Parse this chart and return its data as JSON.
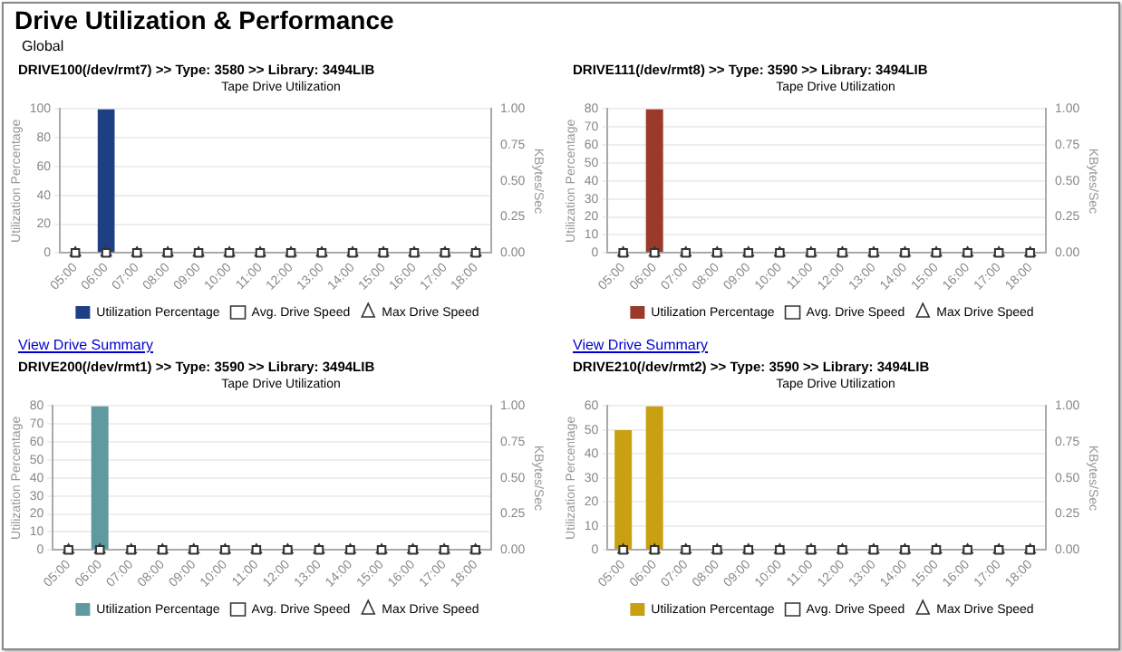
{
  "chart_data": [
    {
      "type": "bar",
      "title": "Tape Drive Utilization",
      "subtitle": "DRIVE100(/dev/rmt7) >> Type: 3580 >> Library: 3494LIB",
      "annotations": [
        "Drive Utilization & Performance",
        "Global",
        "View Drive Summary"
      ],
      "xlabel": null,
      "ylabel": "Utilization Percentage",
      "y2label": "KBytes/Sec",
      "categories": [
        "05:00",
        "06:00",
        "07:00",
        "08:00",
        "09:00",
        "10:00",
        "11:00",
        "12:00",
        "13:00",
        "14:00",
        "15:00",
        "16:00",
        "17:00",
        "18:00"
      ],
      "series": [
        {
          "name": "Utilization Percentage",
          "color": "#1f3f84",
          "values": [
            null,
            100,
            null,
            null,
            null,
            null,
            null,
            null,
            null,
            null,
            null,
            null,
            null,
            null
          ]
        },
        {
          "name": "Avg. Drive Speed",
          "type": "scatter",
          "x": [
            "05:00",
            "06:00",
            "07:00",
            "08:00",
            "09:00",
            "10:00",
            "11:00",
            "12:00",
            "13:00",
            "14:00",
            "15:00",
            "16:00",
            "17:00",
            "18:00"
          ],
          "marker": "square",
          "color": "#333333",
          "values": [
            0,
            0,
            0,
            0,
            0,
            0,
            0,
            0,
            0,
            0,
            0,
            0,
            0,
            0
          ]
        },
        {
          "name": "Max Drive Speed",
          "type": "scatter",
          "x": [
            "05:00",
            "06:00",
            "07:00",
            "08:00",
            "09:00",
            "10:00",
            "11:00",
            "12:00",
            "13:00",
            "14:00",
            "15:00",
            "16:00",
            "17:00",
            "18:00"
          ],
          "marker": "triangle",
          "color": "#333333",
          "values": [
            0,
            0,
            0,
            0,
            0,
            0,
            0,
            0,
            0,
            0,
            0,
            0,
            0,
            0
          ]
        }
      ],
      "ylim": [
        0,
        100
      ],
      "yticks": [
        0,
        20,
        40,
        60,
        80,
        100
      ],
      "y2lim": [
        0,
        1
      ],
      "y2ticks": [
        {
          "value": 0,
          "label": "0.00"
        },
        {
          "value": 0.25,
          "label": "0.25"
        },
        {
          "value": 0.5,
          "label": "0.50"
        },
        {
          "value": 0.75,
          "label": "0.75"
        },
        {
          "value": 1,
          "label": "1.00"
        }
      ],
      "grid": "y",
      "legend": "bottom"
    },
    {
      "type": "bar",
      "title": "Tape Drive Utilization",
      "subtitle": "DRIVE111(/dev/rmt8) >> Type: 3590 >> Library: 3494LIB",
      "annotations": [
        "View Drive Summary"
      ],
      "ylabel": "Utilization Percentage",
      "y2label": "KBytes/Sec",
      "categories": [
        "05:00",
        "06:00",
        "07:00",
        "08:00",
        "09:00",
        "10:00",
        "11:00",
        "12:00",
        "13:00",
        "14:00",
        "15:00",
        "16:00",
        "17:00",
        "18:00"
      ],
      "series": [
        {
          "name": "Utilization Percentage",
          "color": "#9a3a2a",
          "values": [
            null,
            80,
            null,
            null,
            null,
            null,
            null,
            null,
            null,
            null,
            null,
            null,
            null,
            null
          ]
        },
        {
          "name": "Avg. Drive Speed",
          "type": "scatter",
          "x": [
            "05:00",
            "06:00",
            "07:00",
            "08:00",
            "09:00",
            "10:00",
            "11:00",
            "12:00",
            "13:00",
            "14:00",
            "15:00",
            "16:00",
            "17:00",
            "18:00"
          ],
          "marker": "square",
          "color": "#333333",
          "values": [
            0,
            0,
            0,
            0,
            0,
            0,
            0,
            0,
            0,
            0,
            0,
            0,
            0,
            0
          ]
        },
        {
          "name": "Max Drive Speed",
          "type": "scatter",
          "x": [
            "05:00",
            "06:00",
            "07:00",
            "08:00",
            "09:00",
            "10:00",
            "11:00",
            "12:00",
            "13:00",
            "14:00",
            "15:00",
            "16:00",
            "17:00",
            "18:00"
          ],
          "marker": "triangle",
          "color": "#333333",
          "values": [
            0,
            0,
            0,
            0,
            0,
            0,
            0,
            0,
            0,
            0,
            0,
            0,
            0,
            0
          ]
        }
      ],
      "ylim": [
        0,
        80
      ],
      "yticks": [
        0,
        10,
        20,
        30,
        40,
        50,
        60,
        70,
        80
      ],
      "y2lim": [
        0,
        1
      ],
      "y2ticks": [
        {
          "value": 0,
          "label": "0.00"
        },
        {
          "value": 0.25,
          "label": "0.25"
        },
        {
          "value": 0.5,
          "label": "0.50"
        },
        {
          "value": 0.75,
          "label": "0.75"
        },
        {
          "value": 1,
          "label": "1.00"
        }
      ],
      "grid": "y",
      "legend": "bottom"
    },
    {
      "type": "bar",
      "title": "Tape Drive Utilization",
      "subtitle": "DRIVE200(/dev/rmt1) >> Type: 3590 >> Library: 3494LIB",
      "ylabel": "Utilization Percentage",
      "y2label": "KBytes/Sec",
      "categories": [
        "05:00",
        "06:00",
        "07:00",
        "08:00",
        "09:00",
        "10:00",
        "11:00",
        "12:00",
        "13:00",
        "14:00",
        "15:00",
        "16:00",
        "17:00",
        "18:00"
      ],
      "series": [
        {
          "name": "Utilization Percentage",
          "color": "#5e9a9f",
          "values": [
            null,
            80,
            null,
            null,
            null,
            null,
            null,
            null,
            null,
            null,
            null,
            null,
            null,
            null
          ]
        },
        {
          "name": "Avg. Drive Speed",
          "type": "scatter",
          "x": [
            "05:00",
            "06:00",
            "07:00",
            "08:00",
            "09:00",
            "10:00",
            "11:00",
            "12:00",
            "13:00",
            "14:00",
            "15:00",
            "16:00",
            "17:00",
            "18:00"
          ],
          "marker": "square",
          "color": "#333333",
          "values": [
            0,
            0,
            0,
            0,
            0,
            0,
            0,
            0,
            0,
            0,
            0,
            0,
            0,
            0
          ]
        },
        {
          "name": "Max Drive Speed",
          "type": "scatter",
          "x": [
            "05:00",
            "06:00",
            "07:00",
            "08:00",
            "09:00",
            "10:00",
            "11:00",
            "12:00",
            "13:00",
            "14:00",
            "15:00",
            "16:00",
            "17:00",
            "18:00"
          ],
          "marker": "triangle",
          "color": "#333333",
          "values": [
            0,
            0,
            0,
            0,
            0,
            0,
            0,
            0,
            0,
            0,
            0,
            0,
            0,
            0
          ]
        }
      ],
      "ylim": [
        0,
        80
      ],
      "yticks": [
        0,
        10,
        20,
        30,
        40,
        50,
        60,
        70,
        80
      ],
      "y2lim": [
        0,
        1
      ],
      "y2ticks": [
        {
          "value": 0,
          "label": "0.00"
        },
        {
          "value": 0.25,
          "label": "0.25"
        },
        {
          "value": 0.5,
          "label": "0.50"
        },
        {
          "value": 0.75,
          "label": "0.75"
        },
        {
          "value": 1,
          "label": "1.00"
        }
      ],
      "grid": "y",
      "legend": "bottom"
    },
    {
      "type": "bar",
      "title": "Tape Drive Utilization",
      "subtitle": "DRIVE210(/dev/rmt2) >> Type: 3590 >> Library: 3494LIB",
      "ylabel": "Utilization Percentage",
      "y2label": "KBytes/Sec",
      "categories": [
        "05:00",
        "06:00",
        "07:00",
        "08:00",
        "09:00",
        "10:00",
        "11:00",
        "12:00",
        "13:00",
        "14:00",
        "15:00",
        "16:00",
        "17:00",
        "18:00"
      ],
      "series": [
        {
          "name": "Utilization Percentage",
          "color": "#c8a012",
          "values": [
            50,
            60,
            null,
            null,
            null,
            null,
            null,
            null,
            null,
            null,
            null,
            null,
            null,
            null
          ]
        },
        {
          "name": "Avg. Drive Speed",
          "type": "scatter",
          "x": [
            "05:00",
            "06:00",
            "07:00",
            "08:00",
            "09:00",
            "10:00",
            "11:00",
            "12:00",
            "13:00",
            "14:00",
            "15:00",
            "16:00",
            "17:00",
            "18:00"
          ],
          "marker": "square",
          "color": "#333333",
          "values": [
            0,
            0,
            0,
            0,
            0,
            0,
            0,
            0,
            0,
            0,
            0,
            0,
            0,
            0
          ]
        },
        {
          "name": "Max Drive Speed",
          "type": "scatter",
          "x": [
            "05:00",
            "06:00",
            "07:00",
            "08:00",
            "09:00",
            "10:00",
            "11:00",
            "12:00",
            "13:00",
            "14:00",
            "15:00",
            "16:00",
            "17:00",
            "18:00"
          ],
          "marker": "triangle",
          "color": "#333333",
          "values": [
            0,
            0,
            0,
            0,
            0,
            0,
            0,
            0,
            0,
            0,
            0,
            0,
            0,
            0
          ]
        }
      ],
      "ylim": [
        0,
        60
      ],
      "yticks": [
        0,
        10,
        20,
        30,
        40,
        50,
        60
      ],
      "y2lim": [
        0,
        1
      ],
      "y2ticks": [
        {
          "value": 0,
          "label": "0.00"
        },
        {
          "value": 0.25,
          "label": "0.25"
        },
        {
          "value": 0.5,
          "label": "0.50"
        },
        {
          "value": 0.75,
          "label": "0.75"
        },
        {
          "value": 1,
          "label": "1.00"
        }
      ],
      "grid": "y",
      "legend": "bottom"
    }
  ]
}
